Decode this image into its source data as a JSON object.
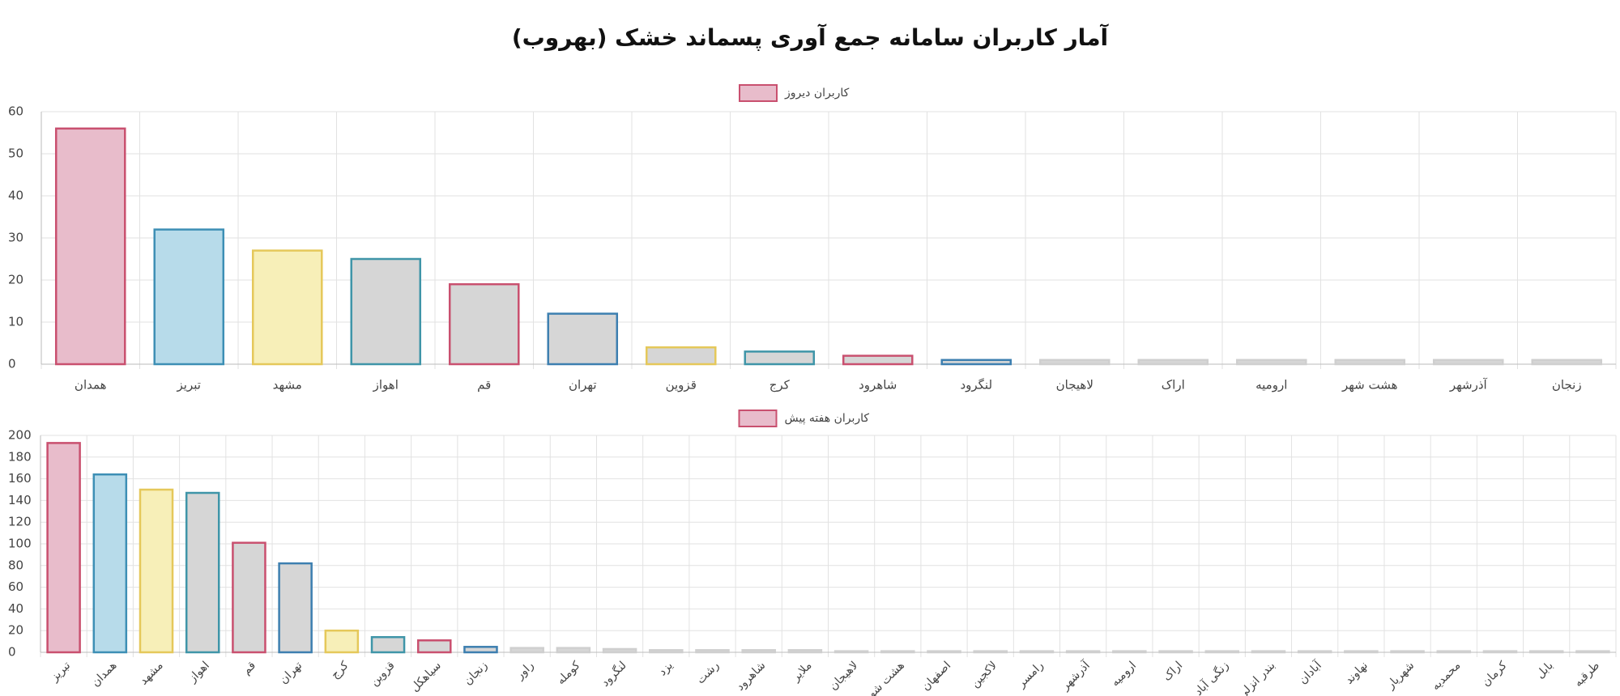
{
  "title": "آمار کاربران سامانه جمع آوری پسماند خشک (بهروب)",
  "chart_data": [
    {
      "type": "bar",
      "categories": [
        "همدان",
        "تبریز",
        "مشهد",
        "اهواز",
        "قم",
        "تهران",
        "قزوین",
        "کرج",
        "شاهرود",
        "لنگرود",
        "لاهیجان",
        "اراک",
        "ارومیه",
        "هشت شهر",
        "آذرشهر",
        "زنجان"
      ],
      "series": [
        {
          "name": "کاربران دیروز",
          "values": [
            56,
            32,
            27,
            25,
            19,
            12,
            4,
            3,
            2,
            1,
            1,
            1,
            1,
            1,
            1,
            1
          ],
          "legend_color": "#e8bccb",
          "legend_border": "#c9506f",
          "colors": [
            "#e8bccb",
            "#b7dbea",
            "#f7efb8",
            "#d6d6d6",
            "#d6d6d6",
            "#d6d6d6",
            "#d6d6d6",
            "#d6d6d6",
            "#d6d6d6",
            "#d6d6d6",
            "#d6d6d6",
            "#d6d6d6",
            "#d6d6d6",
            "#d6d6d6",
            "#d6d6d6",
            "#d6d6d6"
          ],
          "border_colors": [
            "#c9506f",
            "#3d8fb5",
            "#e5c85a",
            "#3f95a8",
            "#c9506f",
            "#3d7fb0",
            "#e5c85a",
            "#3f95a8",
            "#c9506f",
            "#3d7fb0",
            "#cfcfcf",
            "#cfcfcf",
            "#cfcfcf",
            "#cfcfcf",
            "#cfcfcf",
            "#cfcfcf"
          ]
        }
      ],
      "ylim": [
        0,
        60
      ],
      "yticks": [
        0,
        10,
        20,
        30,
        40,
        50,
        60
      ],
      "grid": true,
      "legend": "top",
      "rotate_labels": false
    },
    {
      "type": "bar",
      "categories": [
        "تبریز",
        "همدان",
        "مشهد",
        "اهواز",
        "قم",
        "تهران",
        "کرج",
        "قزوین",
        "سیاهکل",
        "زنجان",
        "راور",
        "کومله",
        "لنگرود",
        "یزد",
        "رشت",
        "شاهرود",
        "ملایر",
        "لاهیجان",
        "هشت شهر",
        "اصفهان",
        "لاکجین",
        "رامسر",
        "آذرشهر",
        "ارومیه",
        "اراک",
        "زنگی آباد",
        "بندر انزلی",
        "آبادان",
        "نهاوند",
        "شهریار",
        "محمدیه",
        "کرمان",
        "بابل",
        "طرقبه"
      ],
      "series": [
        {
          "name": "کاربران هفته پیش",
          "values": [
            193,
            164,
            150,
            147,
            101,
            82,
            20,
            14,
            11,
            5,
            4,
            4,
            3,
            2,
            2,
            2,
            2,
            1,
            1,
            1,
            1,
            1,
            1,
            1,
            1,
            1,
            1,
            1,
            1,
            1,
            1,
            1,
            1,
            1
          ],
          "legend_color": "#e8bccb",
          "legend_border": "#c9506f",
          "colors": [
            "#e8bccb",
            "#b7dbea",
            "#f7efb8",
            "#d6d6d6",
            "#d6d6d6",
            "#d6d6d6",
            "#f7efb8",
            "#d6d6d6",
            "#d6d6d6",
            "#d6d6d6",
            "#d6d6d6",
            "#d6d6d6",
            "#d6d6d6",
            "#d6d6d6",
            "#d6d6d6",
            "#d6d6d6",
            "#d6d6d6",
            "#d6d6d6",
            "#d6d6d6",
            "#d6d6d6",
            "#d6d6d6",
            "#d6d6d6",
            "#d6d6d6",
            "#d6d6d6",
            "#d6d6d6",
            "#d6d6d6",
            "#d6d6d6",
            "#d6d6d6",
            "#d6d6d6",
            "#d6d6d6",
            "#d6d6d6",
            "#d6d6d6",
            "#d6d6d6",
            "#d6d6d6"
          ],
          "border_colors": [
            "#c9506f",
            "#3d8fb5",
            "#e5c85a",
            "#3f95a8",
            "#c9506f",
            "#3d7fb0",
            "#e5c85a",
            "#3f95a8",
            "#c9506f",
            "#3d7fb0",
            "#cfcfcf",
            "#cfcfcf",
            "#cfcfcf",
            "#cfcfcf",
            "#cfcfcf",
            "#cfcfcf",
            "#cfcfcf",
            "#cfcfcf",
            "#cfcfcf",
            "#cfcfcf",
            "#cfcfcf",
            "#cfcfcf",
            "#cfcfcf",
            "#cfcfcf",
            "#cfcfcf",
            "#cfcfcf",
            "#cfcfcf",
            "#cfcfcf",
            "#cfcfcf",
            "#cfcfcf",
            "#cfcfcf",
            "#cfcfcf",
            "#cfcfcf",
            "#cfcfcf"
          ]
        }
      ],
      "ylim": [
        0,
        200
      ],
      "yticks": [
        0,
        20,
        40,
        60,
        80,
        100,
        120,
        140,
        160,
        180,
        200
      ],
      "grid": true,
      "legend": "top",
      "rotate_labels": true
    }
  ]
}
